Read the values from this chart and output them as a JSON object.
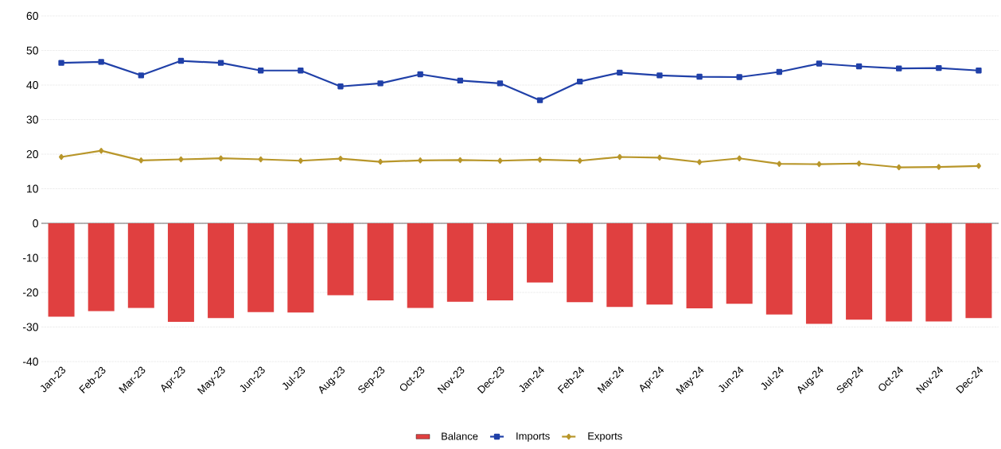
{
  "chart_data": {
    "type": "bar",
    "categories": [
      "Jan-23",
      "Feb-23",
      "Mar-23",
      "Apr-23",
      "May-23",
      "Jun-23",
      "Jul-23",
      "Aug-23",
      "Sep-23",
      "Oct-23",
      "Nov-23",
      "Dec-23",
      "Jan-24",
      "Feb-24",
      "Mar-24",
      "Apr-24",
      "May-24",
      "Jun-24",
      "Jul-24",
      "Aug-24",
      "Sep-24",
      "Oct-24",
      "Nov-24",
      "Dec-24"
    ],
    "series": [
      {
        "name": "Balance",
        "color": "#e04040",
        "values": [
          -27.0,
          -25.4,
          -24.5,
          -28.5,
          -27.4,
          -25.7,
          -25.8,
          -20.8,
          -22.3,
          -24.5,
          -22.7,
          -22.3,
          -17.1,
          -22.8,
          -24.2,
          -23.5,
          -24.6,
          -23.3,
          -26.4,
          -29.1,
          -27.9,
          -28.4,
          -28.4,
          -27.4
        ]
      },
      {
        "name": "Imports",
        "type": "line",
        "marker": "square",
        "color": "#2040a8",
        "values": [
          46.4,
          46.7,
          42.8,
          47.0,
          46.4,
          44.2,
          44.2,
          39.6,
          40.5,
          43.1,
          41.3,
          40.5,
          35.6,
          41.0,
          43.6,
          42.8,
          42.4,
          42.3,
          43.8,
          46.2,
          45.4,
          44.8,
          44.9,
          44.2
        ]
      },
      {
        "name": "Exports",
        "type": "line",
        "marker": "diamond",
        "color": "#b8962a",
        "values": [
          19.2,
          21.0,
          18.2,
          18.5,
          18.8,
          18.5,
          18.1,
          18.7,
          17.8,
          18.2,
          18.3,
          18.1,
          18.4,
          18.1,
          19.2,
          19.0,
          17.7,
          18.8,
          17.2,
          17.1,
          17.3,
          16.2,
          16.3,
          16.6
        ]
      }
    ],
    "ylim": [
      -40,
      60
    ],
    "yticks": [
      -40,
      -30,
      -20,
      -10,
      0,
      10,
      20,
      30,
      40,
      50,
      60
    ],
    "grid": "y",
    "legend": "bottom"
  }
}
